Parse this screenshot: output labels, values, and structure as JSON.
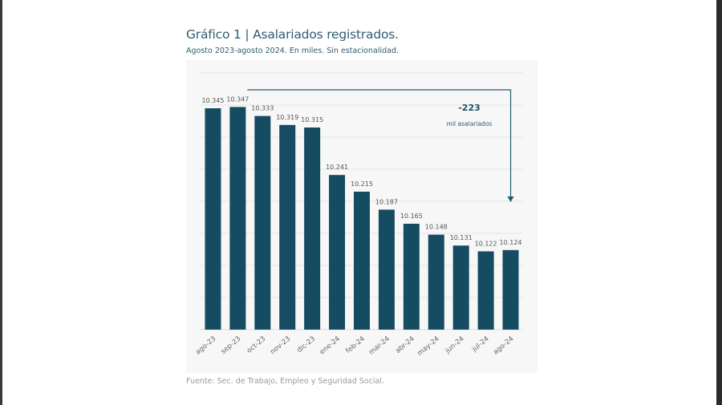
{
  "chart_data": {
    "type": "bar",
    "title": "Gráfico 1 | Asalariados registrados.",
    "subtitle": "Agosto 2023-agosto 2024. En miles. Sin estacionalidad.",
    "source": "Fuente: Sec. de Trabajo, Empleo y Seguridad Social.",
    "categories": [
      "ago-23",
      "sep-23",
      "oct-23",
      "nov-23",
      "dic-23",
      "ene-24",
      "feb-24",
      "mar-24",
      "abr-24",
      "may-24",
      "jun-24",
      "jul-24",
      "ago-24"
    ],
    "values": [
      10.345,
      10.347,
      10.333,
      10.319,
      10.315,
      10.241,
      10.215,
      10.187,
      10.165,
      10.148,
      10.131,
      10.122,
      10.124
    ],
    "data_labels": [
      "10.345",
      "10.347",
      "10.333",
      "10.319",
      "10.315",
      "10.241",
      "10.215",
      "10.187",
      "10.165",
      "10.148",
      "10.131",
      "10.122",
      "10.124"
    ],
    "ylim": [
      10.0,
      10.4
    ],
    "grid": true,
    "y_tick_labels_shown": false,
    "bar_color": "#154c62",
    "annotation": {
      "value": "-223",
      "text": "mil asalariados",
      "arrow": "sep-23 to ago-24"
    }
  }
}
